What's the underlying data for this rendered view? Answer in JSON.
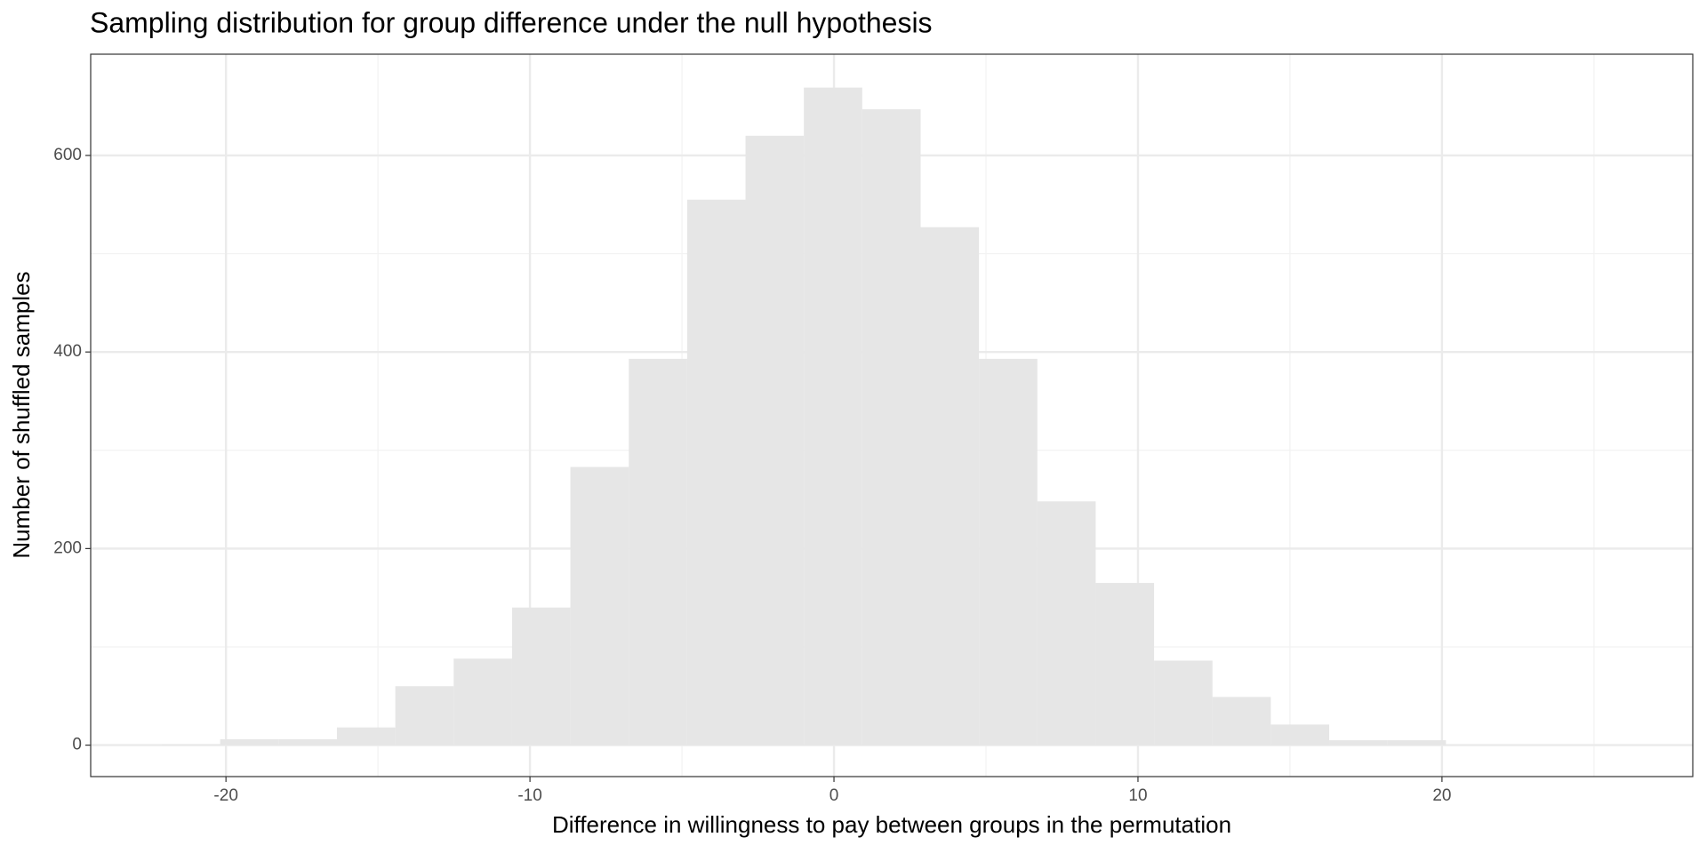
{
  "chart_data": {
    "type": "histogram",
    "title": "Sampling distribution for group difference under the null hypothesis",
    "xlabel": "Difference in willingness to pay between groups in the permutation",
    "ylabel": "Number of shuffled samples",
    "bins": [
      -22.11,
      -20.19,
      -18.27,
      -16.35,
      -14.43,
      -12.51,
      -10.59,
      -8.67,
      -6.75,
      -4.83,
      -2.91,
      -0.99,
      0.93,
      2.85,
      4.77,
      6.69,
      8.61,
      10.53,
      12.45,
      14.37,
      16.29,
      18.21,
      20.13
    ],
    "counts": [
      1,
      6,
      6,
      18,
      60,
      88,
      140,
      283,
      393,
      555,
      620,
      669,
      647,
      527,
      393,
      248,
      165,
      86,
      49,
      21,
      5,
      5
    ],
    "color": "#e6e6e6",
    "xlim": [
      -24.45,
      28.25
    ],
    "xticks": [
      -20,
      -10,
      0,
      10,
      20
    ],
    "minor_xticks": [
      -15,
      -5,
      5,
      15,
      25
    ],
    "ylim": [
      -32,
      703
    ],
    "yticks": [
      0,
      200,
      400,
      600
    ],
    "minor_yticks": [
      100,
      300,
      500
    ],
    "grid": true
  }
}
